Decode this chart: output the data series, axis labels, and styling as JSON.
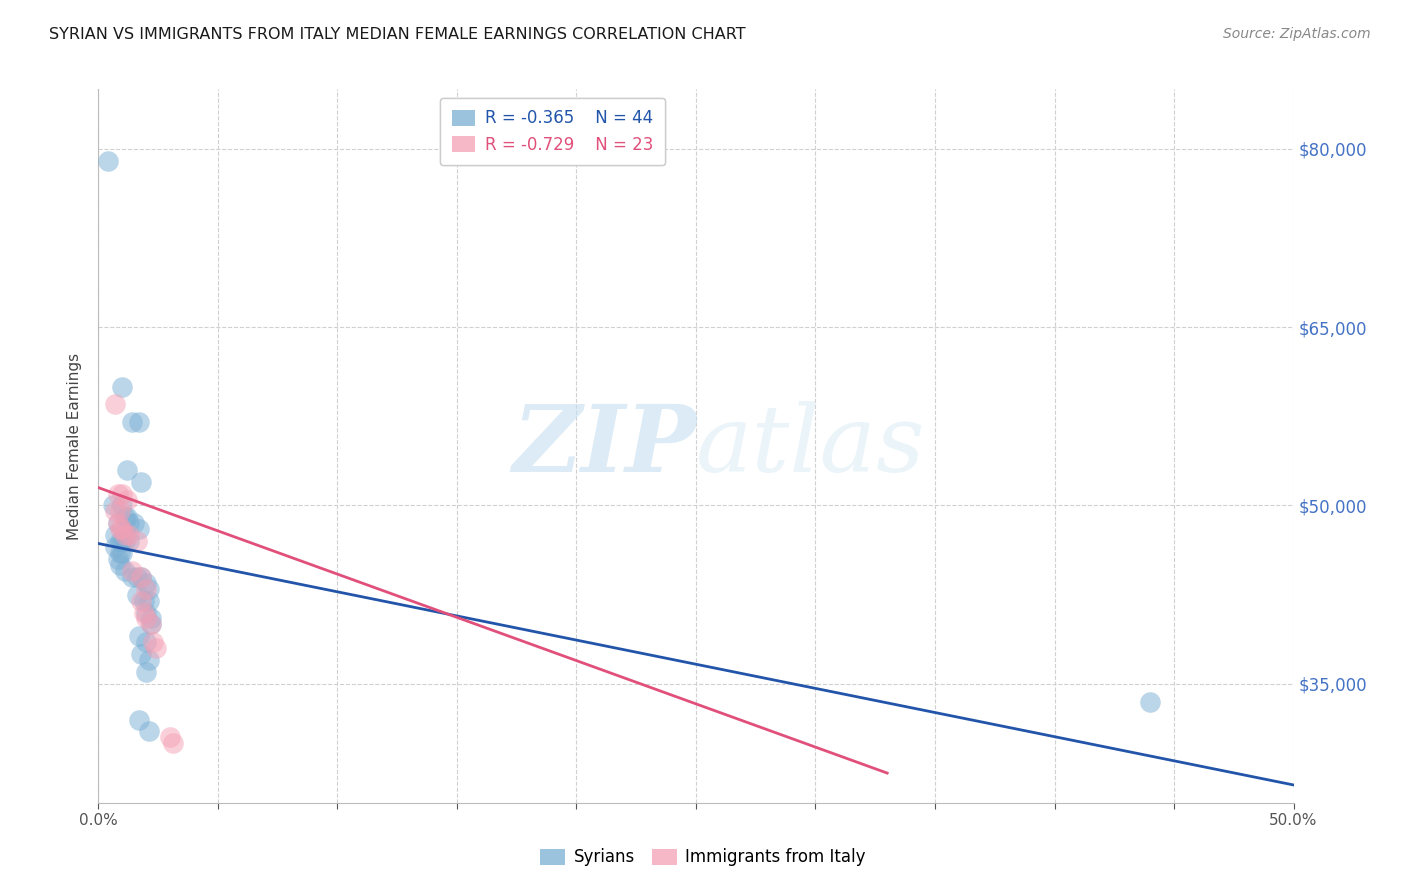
{
  "title": "SYRIAN VS IMMIGRANTS FROM ITALY MEDIAN FEMALE EARNINGS CORRELATION CHART",
  "source": "Source: ZipAtlas.com",
  "ylabel": "Median Female Earnings",
  "watermark": "ZIPatlas",
  "legend_blue_r": "R = -0.365",
  "legend_blue_n": "N = 44",
  "legend_pink_r": "R = -0.729",
  "legend_pink_n": "N = 23",
  "legend_blue_label": "Syrians",
  "legend_pink_label": "Immigrants from Italy",
  "xlim": [
    0.0,
    0.5
  ],
  "ylim": [
    25000,
    85000
  ],
  "yticks": [
    35000,
    50000,
    65000,
    80000
  ],
  "ytick_labels": [
    "$35,000",
    "$50,000",
    "$65,000",
    "$80,000"
  ],
  "title_color": "#1a1a1a",
  "source_color": "#888888",
  "ylabel_color": "#444444",
  "right_ytick_color": "#4472c4",
  "blue_color": "#7bafd4",
  "pink_color": "#f4a0b5",
  "blue_line_color": "#2255aa",
  "pink_line_color": "#e0507a",
  "grid_color": "#d0d0d0",
  "blue_points": [
    [
      0.004,
      79000
    ],
    [
      0.01,
      60000
    ],
    [
      0.014,
      57000
    ],
    [
      0.017,
      57000
    ],
    [
      0.012,
      53000
    ],
    [
      0.018,
      52000
    ],
    [
      0.006,
      50000
    ],
    [
      0.01,
      50000
    ],
    [
      0.011,
      49000
    ],
    [
      0.012,
      49000
    ],
    [
      0.008,
      48500
    ],
    [
      0.013,
      48500
    ],
    [
      0.015,
      48500
    ],
    [
      0.017,
      48000
    ],
    [
      0.007,
      47500
    ],
    [
      0.009,
      47000
    ],
    [
      0.01,
      47000
    ],
    [
      0.011,
      47000
    ],
    [
      0.013,
      47000
    ],
    [
      0.007,
      46500
    ],
    [
      0.009,
      46000
    ],
    [
      0.01,
      46000
    ],
    [
      0.008,
      45500
    ],
    [
      0.009,
      45000
    ],
    [
      0.011,
      44500
    ],
    [
      0.014,
      44000
    ],
    [
      0.016,
      44000
    ],
    [
      0.018,
      44000
    ],
    [
      0.02,
      43500
    ],
    [
      0.021,
      43000
    ],
    [
      0.016,
      42500
    ],
    [
      0.019,
      42000
    ],
    [
      0.021,
      42000
    ],
    [
      0.02,
      41000
    ],
    [
      0.022,
      40500
    ],
    [
      0.022,
      40000
    ],
    [
      0.017,
      39000
    ],
    [
      0.02,
      38500
    ],
    [
      0.018,
      37500
    ],
    [
      0.021,
      37000
    ],
    [
      0.02,
      36000
    ],
    [
      0.017,
      32000
    ],
    [
      0.021,
      31000
    ],
    [
      0.44,
      33500
    ]
  ],
  "pink_points": [
    [
      0.007,
      58500
    ],
    [
      0.008,
      51000
    ],
    [
      0.01,
      51000
    ],
    [
      0.012,
      50500
    ],
    [
      0.007,
      49500
    ],
    [
      0.009,
      49500
    ],
    [
      0.008,
      48500
    ],
    [
      0.009,
      48000
    ],
    [
      0.01,
      48000
    ],
    [
      0.011,
      47500
    ],
    [
      0.013,
      47500
    ],
    [
      0.016,
      47000
    ],
    [
      0.014,
      44500
    ],
    [
      0.018,
      44000
    ],
    [
      0.02,
      43000
    ],
    [
      0.018,
      42000
    ],
    [
      0.019,
      41000
    ],
    [
      0.02,
      40500
    ],
    [
      0.022,
      40000
    ],
    [
      0.023,
      38500
    ],
    [
      0.024,
      38000
    ],
    [
      0.03,
      30500
    ],
    [
      0.031,
      30000
    ]
  ],
  "blue_trendline": [
    [
      0.0,
      46800
    ],
    [
      0.5,
      26500
    ]
  ],
  "pink_trendline": [
    [
      0.0,
      51500
    ],
    [
      0.33,
      27500
    ]
  ]
}
